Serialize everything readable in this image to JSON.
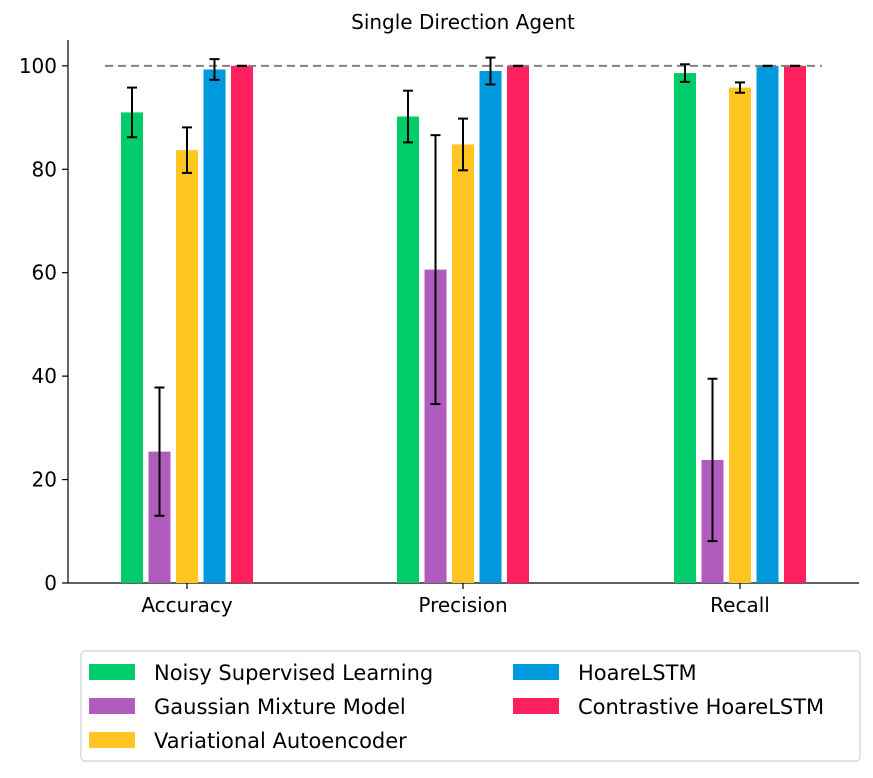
{
  "chart_data": {
    "type": "bar",
    "title": "Single Direction Agent",
    "xlabel": "",
    "ylabel": "",
    "categories": [
      "Accuracy",
      "Precision",
      "Recall"
    ],
    "ylim": [
      0,
      105
    ],
    "yticks": [
      0,
      20,
      40,
      60,
      80,
      100
    ],
    "reference_line": {
      "value": 100,
      "style": "dashed",
      "color": "#808080"
    },
    "grid": false,
    "legend_position": "bottom",
    "series": [
      {
        "name": "Noisy Supervised Learning",
        "color": "#00CC6A",
        "values": [
          91.0,
          90.2,
          98.6
        ],
        "errors": [
          4.8,
          5.0,
          1.7
        ]
      },
      {
        "name": "Gaussian Mixture Model",
        "color": "#B05BBE",
        "values": [
          25.4,
          60.6,
          23.8
        ],
        "errors": [
          12.4,
          26.0,
          15.7
        ]
      },
      {
        "name": "Variational Autoencoder",
        "color": "#FFC520",
        "values": [
          83.7,
          84.8,
          95.8
        ],
        "errors": [
          4.4,
          5.0,
          1.0
        ]
      },
      {
        "name": "HoareLSTM",
        "color": "#0099DD",
        "values": [
          99.3,
          99.0,
          100.0
        ],
        "errors": [
          2.0,
          2.6,
          0.0
        ]
      },
      {
        "name": "Contrastive HoareLSTM",
        "color": "#FF2060",
        "values": [
          100.0,
          100.0,
          100.0
        ],
        "errors": [
          0.0,
          0.0,
          0.0
        ]
      }
    ]
  }
}
